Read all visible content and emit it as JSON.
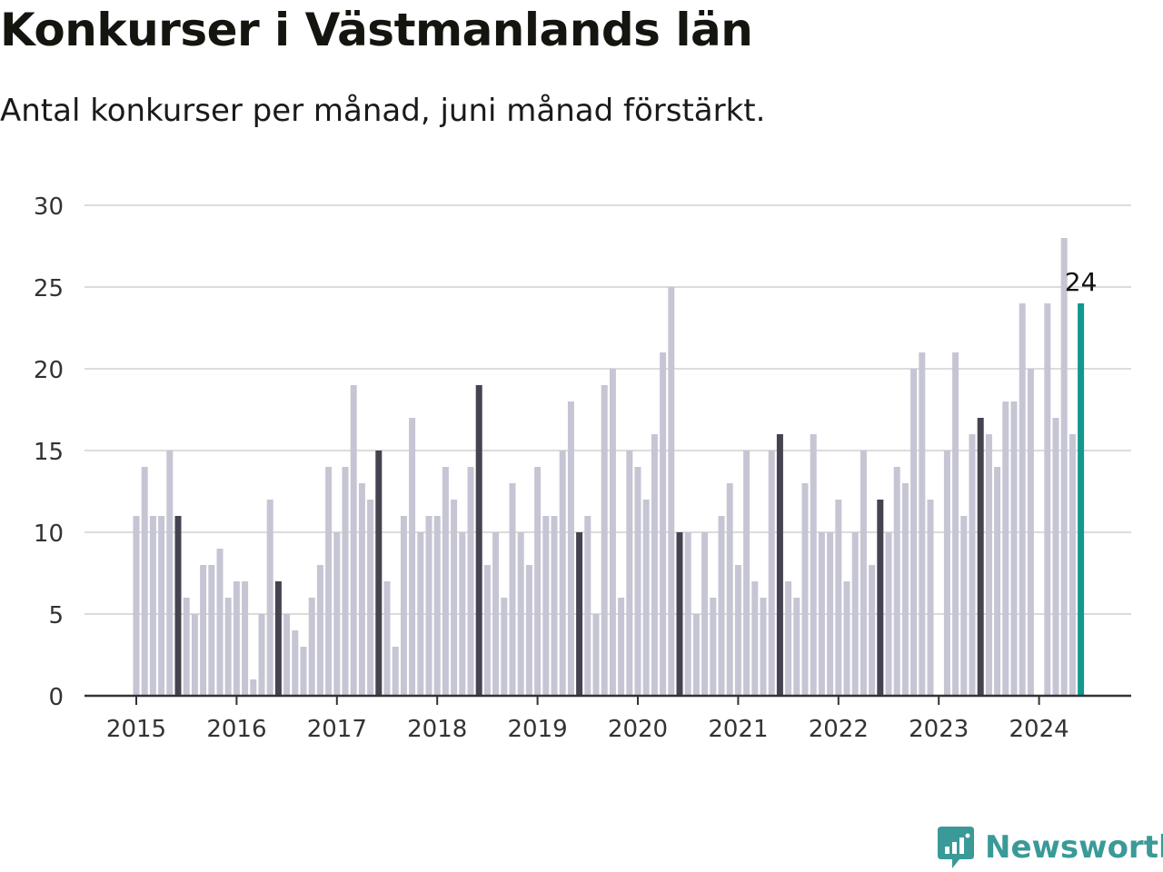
{
  "title": "Konkurser i Västmanlands län",
  "subtitle": "Antal konkurser per månad, juni månad förstärkt.",
  "brand": {
    "name": "Newsworthy",
    "icon": "bar-chart-speech-bubble-icon",
    "color": "#3a9a98"
  },
  "colors": {
    "bar": "#c6c5d4",
    "june": "#454350",
    "latest": "#11998e",
    "grid": "#dcdcdc",
    "axis": "#333333"
  },
  "chart_data": {
    "type": "bar",
    "x_start": "2015-01",
    "x_tick_labels": [
      "2015",
      "2016",
      "2017",
      "2018",
      "2019",
      "2020",
      "2021",
      "2022",
      "2023",
      "2024"
    ],
    "y_ticks": [
      0,
      5,
      10,
      15,
      20,
      25,
      30
    ],
    "ylim": [
      0,
      30
    ],
    "grid": true,
    "highlight": "juni (dark bars); latest month (teal bar)",
    "values": [
      11,
      14,
      11,
      11,
      15,
      11,
      6,
      5,
      8,
      8,
      9,
      6,
      7,
      7,
      1,
      5,
      12,
      7,
      5,
      4,
      3,
      6,
      8,
      14,
      10,
      14,
      19,
      13,
      12,
      15,
      7,
      3,
      11,
      17,
      10,
      11,
      11,
      14,
      12,
      10,
      14,
      19,
      8,
      10,
      6,
      13,
      10,
      8,
      14,
      11,
      11,
      15,
      18,
      10,
      11,
      5,
      19,
      20,
      6,
      15,
      14,
      12,
      16,
      21,
      25,
      10,
      10,
      5,
      10,
      6,
      11,
      13,
      8,
      15,
      7,
      6,
      15,
      16,
      7,
      6,
      13,
      16,
      10,
      10,
      12,
      7,
      10,
      15,
      8,
      12,
      10,
      14,
      13,
      20,
      21,
      12,
      0,
      15,
      21,
      11,
      16,
      17,
      16,
      14,
      18,
      18,
      24,
      20,
      0,
      24,
      17,
      28,
      16,
      24
    ],
    "latest_label": "24"
  }
}
